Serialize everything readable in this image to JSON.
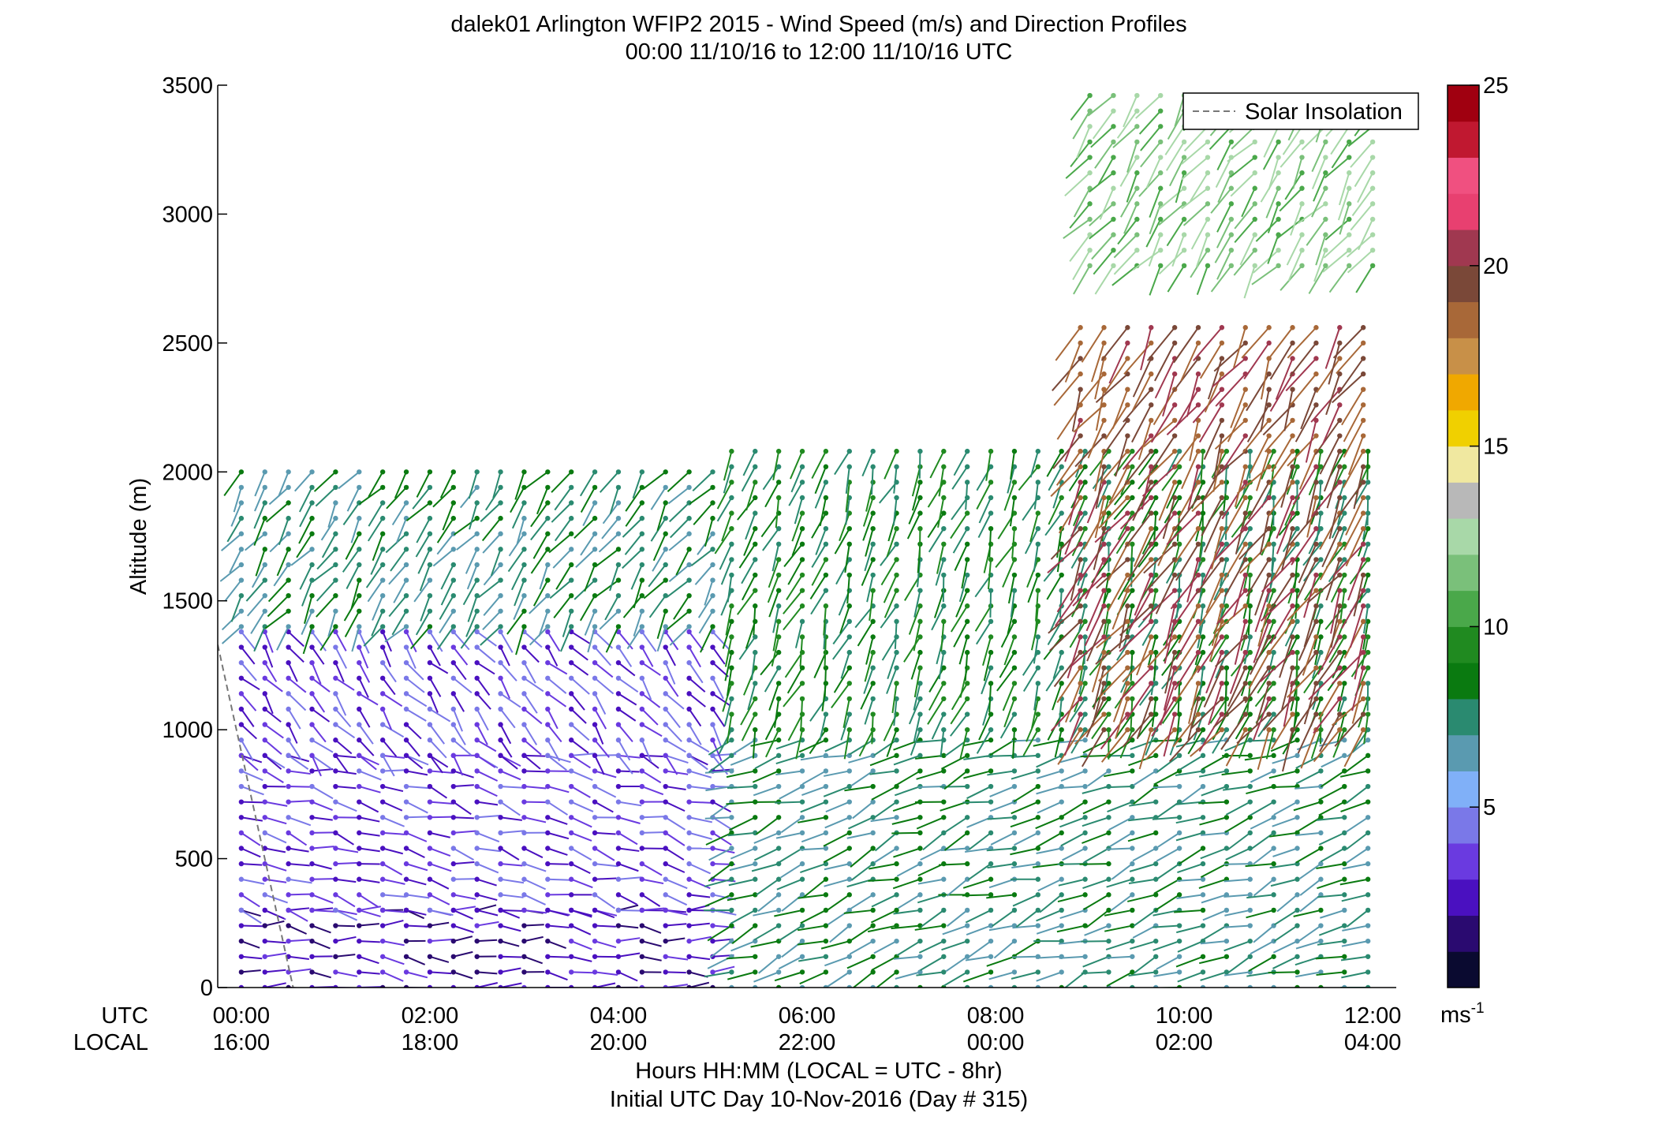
{
  "chart_data": {
    "type": "scatter",
    "subtype": "wind-barb-profile",
    "title": "dalek01 Arlington WFIP2 2015 - Wind Speed (m/s) and Direction Profiles",
    "subtitle": "00:00 11/10/16 to 12:00 11/10/16  UTC",
    "ylabel": "Altitude (m)",
    "ylim": [
      0,
      3500
    ],
    "yticks": [
      "0",
      "500",
      "1000",
      "1500",
      "2000",
      "2500",
      "3000",
      "3500"
    ],
    "xlim": [
      -0.25,
      12.25
    ],
    "xrow_utc_label": "UTC",
    "xrow_local_label": "LOCAL",
    "xticks_utc": [
      "00:00",
      "02:00",
      "04:00",
      "06:00",
      "08:00",
      "10:00",
      "12:00"
    ],
    "xticks_local": [
      "16:00",
      "18:00",
      "20:00",
      "22:00",
      "00:00",
      "02:00",
      "04:00"
    ],
    "xlabel": "Hours HH:MM  (LOCAL = UTC - 8hr)",
    "xlabel2": "Initial UTC Day 10-Nov-2016 (Day # 315)",
    "legend": {
      "entry": "Solar Insolation",
      "placement": "top-right"
    },
    "insolation_line": {
      "x": [
        -0.25,
        0.55
      ],
      "y": [
        1330,
        0
      ]
    },
    "colorbar": {
      "range": [
        0,
        25
      ],
      "ticks": [
        "5",
        "10",
        "15",
        "20",
        "25"
      ],
      "unit": "ms",
      "unit_exp": "-1",
      "colors": [
        "#0a0a30",
        "#2a0a70",
        "#4a10c0",
        "#6a3ae0",
        "#7a78e8",
        "#80b0f8",
        "#5a9ab0",
        "#2a8a70",
        "#0a7a10",
        "#208a20",
        "#4aa84a",
        "#7ac07a",
        "#a8d8a8",
        "#b8b8b8",
        "#f0e8a0",
        "#f0d000",
        "#f0a800",
        "#c89048",
        "#a86838",
        "#7a4838",
        "#a03850",
        "#e84070",
        "#f05080",
        "#c01830",
        "#a00010"
      ]
    },
    "grid": false,
    "barb_layers": [
      {
        "alt_min": 0,
        "alt_max": 300,
        "speed": 3,
        "dir_deg": 95
      },
      {
        "alt_min": 300,
        "alt_max": 900,
        "speed": 4,
        "dir_deg": 105
      },
      {
        "alt_min": 900,
        "alt_max": 1400,
        "speed": 4,
        "dir_deg": 140
      },
      {
        "alt_min": 1400,
        "alt_max": 2000,
        "speed": 8,
        "dir_deg": 215
      },
      {
        "alt_min": 0,
        "alt_max": 1000,
        "speed": 8,
        "dir_deg": 250,
        "t_start": 5.2
      },
      {
        "alt_min": 1000,
        "alt_max": 2100,
        "speed": 9,
        "dir_deg": 200,
        "t_start": 5.2
      },
      {
        "alt_min": 1000,
        "alt_max": 2600,
        "speed": 20,
        "dir_deg": 210,
        "t_start": 8.9
      },
      {
        "alt_min": 2800,
        "alt_max": 3460,
        "speed": 12,
        "dir_deg": 215,
        "t_start": 9.0
      }
    ]
  }
}
